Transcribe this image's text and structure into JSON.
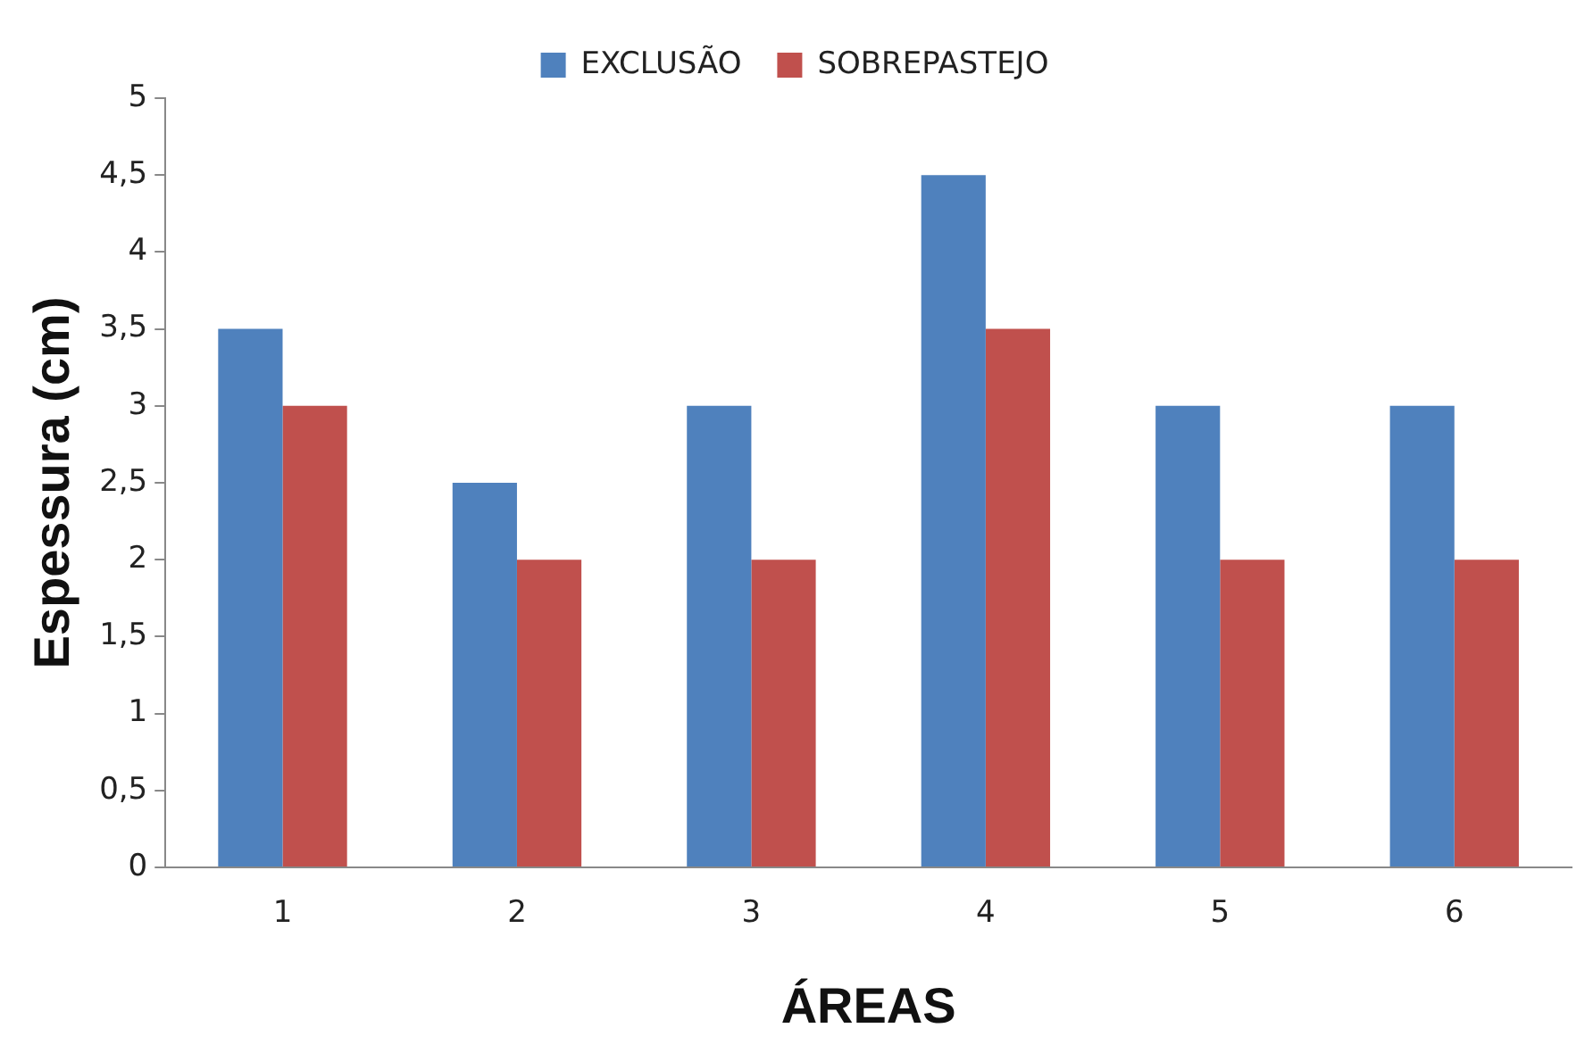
{
  "chart_data": {
    "type": "bar",
    "xlabel": "ÁREAS",
    "ylabel": "Espessura (cm)",
    "categories": [
      "1",
      "2",
      "3",
      "4",
      "5",
      "6"
    ],
    "series": [
      {
        "name": "EXCLUSÃO",
        "color": "#4f81bd",
        "values": [
          3.5,
          2.5,
          3,
          4.5,
          3,
          3
        ]
      },
      {
        "name": "SOBREPASTEJO",
        "color": "#c0504d",
        "values": [
          3,
          2,
          2,
          3.5,
          2,
          2
        ]
      }
    ],
    "ylim": [
      0,
      5
    ],
    "yticks": [
      0,
      {
        "value": 0.5,
        "label": "0,5"
      },
      1,
      {
        "value": 1.5,
        "label": "1,5"
      },
      2,
      {
        "value": 2.5,
        "label": "2,5"
      },
      3,
      {
        "value": 3.5,
        "label": "3,5"
      },
      4,
      {
        "value": 4.5,
        "label": "4,5"
      },
      5
    ],
    "grid": false,
    "legend": "top"
  }
}
